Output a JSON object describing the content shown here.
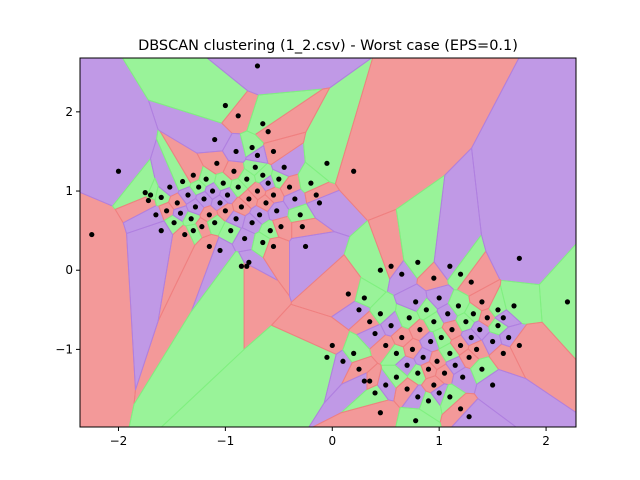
{
  "chart_data": {
    "type": "scatter",
    "title": "DBSCAN clustering (1_2.csv) - Worst case (EPS=0.1)",
    "xlabel": "",
    "ylabel": "",
    "xlim": [
      -2.36,
      2.28
    ],
    "ylim": [
      -1.98,
      2.68
    ],
    "xticks": [
      -2,
      -1,
      0,
      1,
      2
    ],
    "yticks": [
      -1,
      0,
      1,
      2
    ],
    "grid": false,
    "legend": "none",
    "background": "Voronoi tessellation of the points, each cell filled with a translucent cluster colour",
    "cell_palette": [
      "#f08080",
      "#8080f0",
      "#80f080",
      "#c0c080",
      "#f0a0a0",
      "#b080e0",
      "#e09070",
      "#a0d080"
    ],
    "point_color": "#000000",
    "points": [
      [
        -2.25,
        0.45
      ],
      [
        -2.0,
        1.25
      ],
      [
        -1.75,
        0.98
      ],
      [
        -1.72,
        0.88
      ],
      [
        -1.65,
        0.7
      ],
      [
        -1.6,
        0.92
      ],
      [
        -1.55,
        0.75
      ],
      [
        -1.52,
        1.05
      ],
      [
        -1.48,
        0.6
      ],
      [
        -1.45,
        0.85
      ],
      [
        -1.42,
        0.72
      ],
      [
        -1.4,
        1.12
      ],
      [
        -1.38,
        0.45
      ],
      [
        -1.35,
        0.95
      ],
      [
        -1.32,
        0.65
      ],
      [
        -1.3,
        1.2
      ],
      [
        -1.28,
        0.8
      ],
      [
        -1.25,
        1.05
      ],
      [
        -1.22,
        0.55
      ],
      [
        -1.2,
        0.9
      ],
      [
        -1.18,
        1.15
      ],
      [
        -1.15,
        0.7
      ],
      [
        -1.12,
        1.0
      ],
      [
        -1.1,
        0.6
      ],
      [
        -1.08,
        1.35
      ],
      [
        -1.05,
        0.85
      ],
      [
        -1.02,
        1.1
      ],
      [
        -1.0,
        0.75
      ],
      [
        -0.98,
        0.95
      ],
      [
        -0.95,
        0.5
      ],
      [
        -0.92,
        1.25
      ],
      [
        -0.9,
        0.65
      ],
      [
        -0.88,
        1.05
      ],
      [
        -0.85,
        0.8
      ],
      [
        -0.82,
        0.4
      ],
      [
        -0.8,
        1.15
      ],
      [
        -0.78,
        0.9
      ],
      [
        -0.75,
        0.6
      ],
      [
        -0.72,
        1.3
      ],
      [
        -0.7,
        1.0
      ],
      [
        -0.68,
        0.7
      ],
      [
        -0.65,
        1.2
      ],
      [
        -0.62,
        0.85
      ],
      [
        -0.6,
        1.1
      ],
      [
        -0.58,
        0.5
      ],
      [
        -0.55,
        0.95
      ],
      [
        -0.52,
        0.75
      ],
      [
        -0.5,
        1.15
      ],
      [
        -0.48,
        0.55
      ],
      [
        -0.45,
        1.3
      ],
      [
        -1.3,
        0.5
      ],
      [
        -1.15,
        0.3
      ],
      [
        -1.05,
        0.25
      ],
      [
        -0.85,
        0.05
      ],
      [
        -0.8,
        0.05
      ],
      [
        -0.78,
        0.1
      ],
      [
        -0.65,
        0.35
      ],
      [
        -0.55,
        0.3
      ],
      [
        -1.6,
        0.5
      ],
      [
        -1.7,
        0.95
      ],
      [
        -0.4,
        1.05
      ],
      [
        -0.35,
        0.9
      ],
      [
        -0.3,
        0.7
      ],
      [
        -0.28,
        0.55
      ],
      [
        -0.25,
        0.3
      ],
      [
        -0.2,
        1.1
      ],
      [
        -0.15,
        0.95
      ],
      [
        -0.12,
        0.85
      ],
      [
        -0.05,
        1.35
      ],
      [
        0.2,
        1.25
      ],
      [
        -1.1,
        1.65
      ],
      [
        -1.0,
        2.08
      ],
      [
        -0.88,
        1.95
      ],
      [
        -0.7,
        2.58
      ],
      [
        -0.65,
        1.85
      ],
      [
        -0.6,
        1.75
      ],
      [
        -0.9,
        1.5
      ],
      [
        -0.75,
        1.55
      ],
      [
        -0.55,
        1.5
      ],
      [
        -0.7,
        1.45
      ],
      [
        0.45,
        0.0
      ],
      [
        0.55,
        0.05
      ],
      [
        0.65,
        -0.05
      ],
      [
        0.8,
        0.1
      ],
      [
        0.95,
        -0.1
      ],
      [
        1.1,
        0.05
      ],
      [
        1.2,
        -0.05
      ],
      [
        1.3,
        -0.15
      ],
      [
        1.75,
        0.15
      ],
      [
        2.2,
        -0.4
      ],
      [
        0.15,
        -0.3
      ],
      [
        0.25,
        -0.5
      ],
      [
        0.3,
        -0.35
      ],
      [
        0.35,
        -0.65
      ],
      [
        0.4,
        -0.8
      ],
      [
        0.45,
        -0.55
      ],
      [
        0.5,
        -0.95
      ],
      [
        0.55,
        -0.7
      ],
      [
        0.6,
        -1.05
      ],
      [
        0.65,
        -0.85
      ],
      [
        0.7,
        -1.2
      ],
      [
        0.72,
        -0.6
      ],
      [
        0.75,
        -1.0
      ],
      [
        0.78,
        -0.4
      ],
      [
        0.8,
        -1.3
      ],
      [
        0.82,
        -0.75
      ],
      [
        0.85,
        -1.1
      ],
      [
        0.88,
        -0.5
      ],
      [
        0.9,
        -1.25
      ],
      [
        0.92,
        -0.9
      ],
      [
        0.95,
        -0.65
      ],
      [
        0.98,
        -1.15
      ],
      [
        1.0,
        -0.35
      ],
      [
        1.02,
        -0.85
      ],
      [
        1.05,
        -1.3
      ],
      [
        1.08,
        -0.55
      ],
      [
        1.1,
        -1.05
      ],
      [
        1.12,
        -0.75
      ],
      [
        1.15,
        -1.2
      ],
      [
        1.18,
        -0.45
      ],
      [
        1.2,
        -0.95
      ],
      [
        1.22,
        -1.35
      ],
      [
        1.25,
        -0.65
      ],
      [
        1.28,
        -1.1
      ],
      [
        1.3,
        -0.85
      ],
      [
        1.32,
        -0.55
      ],
      [
        1.35,
        -1.0
      ],
      [
        1.38,
        -0.75
      ],
      [
        1.4,
        -1.25
      ],
      [
        1.45,
        -0.6
      ],
      [
        1.5,
        -0.9
      ],
      [
        1.55,
        -0.7
      ],
      [
        1.6,
        -1.05
      ],
      [
        1.65,
        -0.85
      ],
      [
        1.7,
        -0.45
      ],
      [
        1.75,
        -0.95
      ],
      [
        1.5,
        -1.45
      ],
      [
        1.55,
        -0.5
      ],
      [
        1.4,
        -0.4
      ],
      [
        1.6,
        -0.6
      ],
      [
        -0.05,
        -1.1
      ],
      [
        0.0,
        -0.95
      ],
      [
        0.1,
        -1.15
      ],
      [
        0.2,
        -1.05
      ],
      [
        0.25,
        -1.25
      ],
      [
        0.3,
        -1.4
      ],
      [
        0.4,
        -1.55
      ],
      [
        0.45,
        -1.8
      ],
      [
        0.5,
        -1.45
      ],
      [
        0.6,
        -1.35
      ],
      [
        0.7,
        -1.5
      ],
      [
        0.8,
        -1.6
      ],
      [
        0.9,
        -1.65
      ],
      [
        0.95,
        -1.45
      ],
      [
        1.0,
        -1.55
      ],
      [
        1.1,
        -1.6
      ],
      [
        1.2,
        -1.75
      ],
      [
        1.28,
        -1.85
      ],
      [
        0.78,
        -1.9
      ],
      [
        0.35,
        -1.4
      ]
    ]
  }
}
